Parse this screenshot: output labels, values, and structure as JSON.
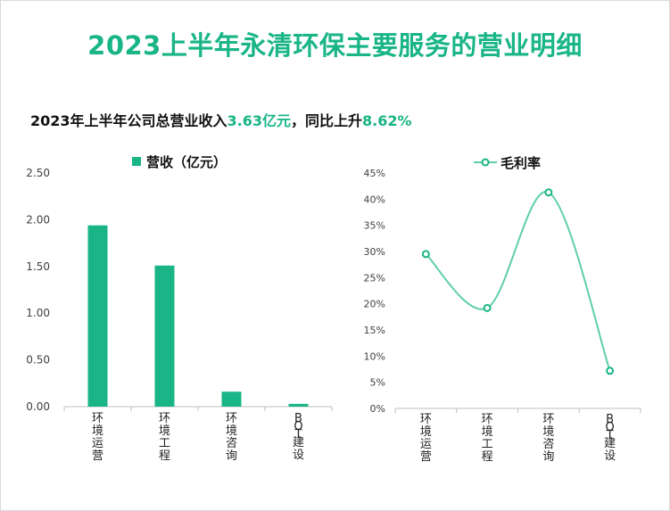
{
  "header": {
    "title": "2023上半年永清环保主要服务的营业明细",
    "subtitle_prefix": "2023年上半年公司总营业收入",
    "subtitle_value1": "3.63亿元",
    "subtitle_mid": "，同比上升",
    "subtitle_value2": "8.62%"
  },
  "colors": {
    "accent": "#19b586",
    "line": "#5fcfa5",
    "axis": "#bfbfbf"
  },
  "chart_data": [
    {
      "type": "bar",
      "categories": [
        "环境运营",
        "环境工程",
        "环境咨询",
        "BOT建设"
      ],
      "series": [
        {
          "name": "营收（亿元）",
          "values": [
            1.94,
            1.51,
            0.16,
            0.03
          ]
        }
      ],
      "ylim": [
        0,
        2.5
      ],
      "yticks": [
        "0.00",
        "0.50",
        "1.00",
        "1.50",
        "2.00",
        "2.50"
      ],
      "grid": false,
      "legend": "top"
    },
    {
      "type": "line",
      "categories": [
        "环境运营",
        "环境工程",
        "环境咨询",
        "BOT建设"
      ],
      "series": [
        {
          "name": "毛利率",
          "values": [
            29.5,
            19.2,
            41.3,
            7.2
          ]
        }
      ],
      "ylim": [
        0,
        45
      ],
      "yticks": [
        "0%",
        "5%",
        "10%",
        "15%",
        "20%",
        "25%",
        "30%",
        "35%",
        "40%",
        "45%"
      ],
      "smooth": true,
      "grid": false,
      "legend": "top"
    }
  ]
}
